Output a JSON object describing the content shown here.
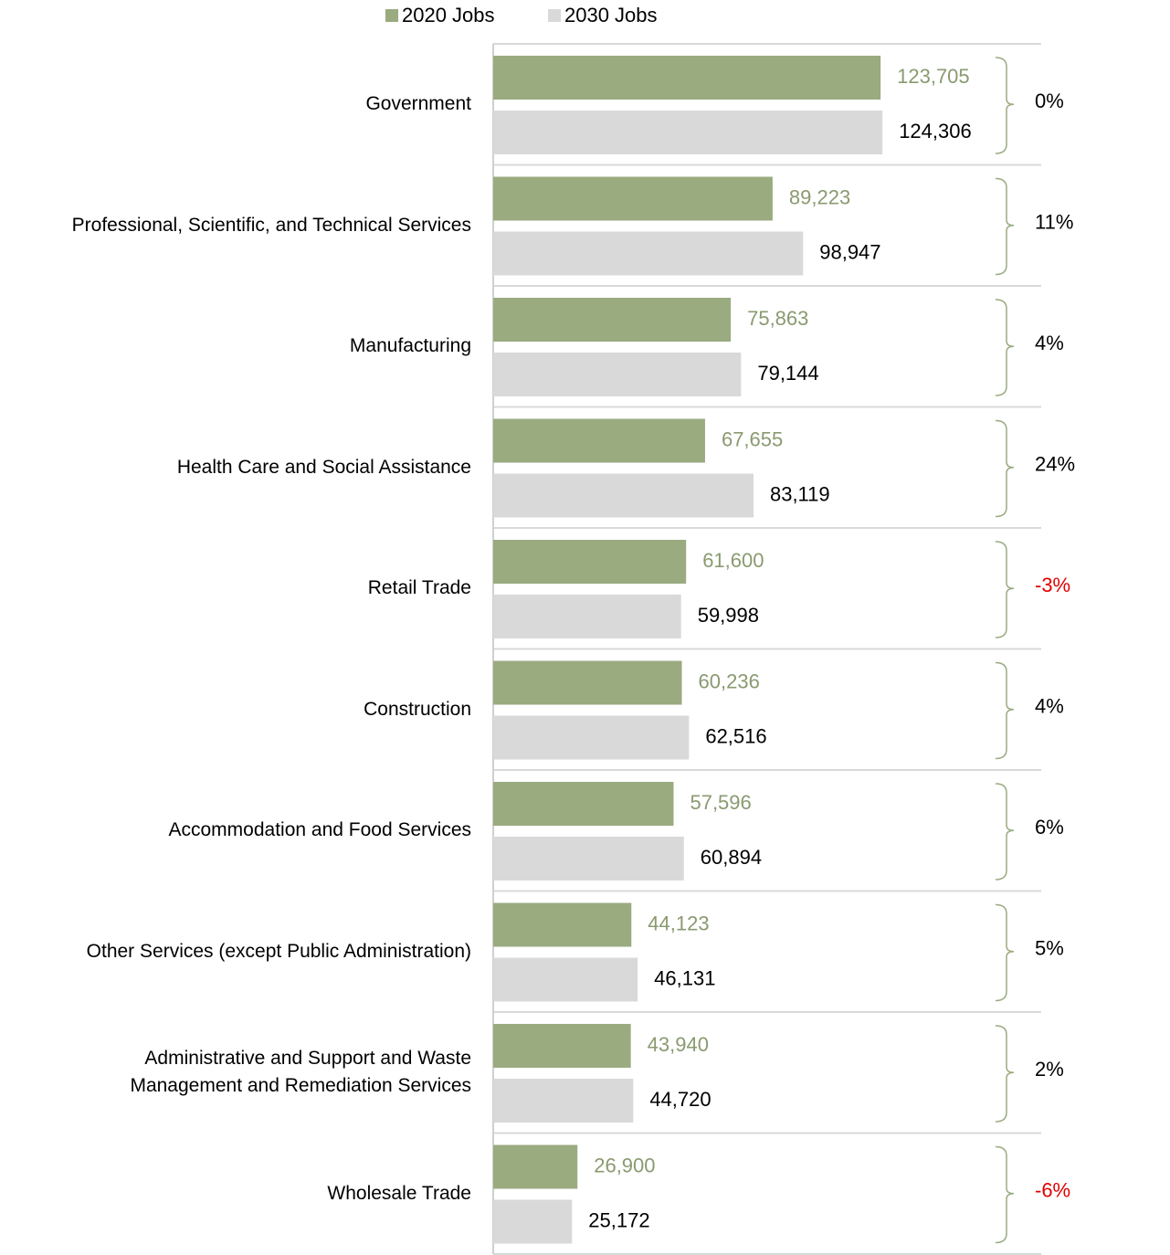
{
  "chart_data": {
    "type": "hbar",
    "categories": [
      "Government",
      "Professional, Scientific, and Technical Services",
      "Manufacturing",
      "Health Care and Social Assistance",
      "Retail Trade",
      "Construction",
      "Accommodation and Food Services",
      "Other Services (except Public Administration)",
      "Administrative and Support and Waste\nManagement and Remediation Services",
      "Wholesale Trade"
    ],
    "series": [
      {
        "name": "2020 Jobs",
        "color": "#9aab80",
        "label_color": "#8a9a70",
        "values": [
          123705,
          89223,
          75863,
          67655,
          61600,
          60236,
          57596,
          44123,
          43940,
          26900
        ],
        "value_labels": [
          "123,705",
          "89,223",
          "75,863",
          "67,655",
          "61,600",
          "60,236",
          "57,596",
          "44,123",
          "43,940",
          "26,900"
        ]
      },
      {
        "name": "2030 Jobs",
        "color": "#d9d9d9",
        "label_color": "#000000",
        "values": [
          124306,
          98947,
          79144,
          83119,
          59998,
          62516,
          60894,
          46131,
          44720,
          25172
        ],
        "value_labels": [
          "124,306",
          "98,947",
          "79,144",
          "83,119",
          "59,998",
          "62,516",
          "60,894",
          "46,131",
          "44,720",
          "25,172"
        ]
      }
    ],
    "changes": {
      "values": [
        0,
        11,
        4,
        24,
        -3,
        4,
        6,
        5,
        2,
        -6
      ],
      "value_labels": [
        "0%",
        "11%",
        "4%",
        "24%",
        "-3%",
        "4%",
        "6%",
        "5%",
        "2%",
        "-6%"
      ],
      "color": "#000000",
      "negative_color": "#e00000"
    },
    "xlim": [
      0,
      175000
    ],
    "legend": "top"
  }
}
